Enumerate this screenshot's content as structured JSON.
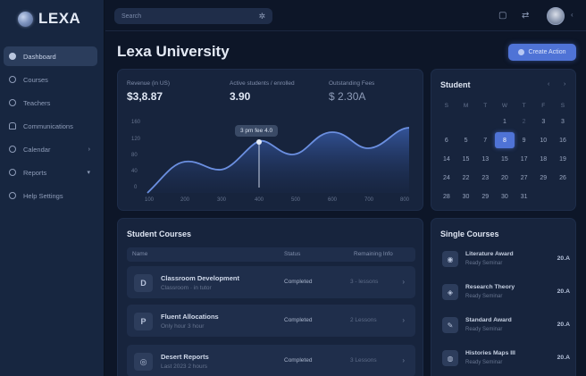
{
  "app": {
    "logo": "LEXA"
  },
  "sidebar": {
    "items": [
      {
        "label": "Dashboard",
        "icon": "dashboard-icon",
        "active": true
      },
      {
        "label": "Courses",
        "icon": "circle-icon"
      },
      {
        "label": "Teachers",
        "icon": "circle-icon"
      },
      {
        "label": "Communications",
        "icon": "user-icon"
      },
      {
        "label": "Calendar",
        "icon": "circle-icon",
        "chevron": "›"
      },
      {
        "label": "Reports",
        "icon": "circle-icon",
        "chevron": "▾"
      },
      {
        "label": "Help Settings",
        "icon": "help-icon"
      }
    ]
  },
  "topbar": {
    "search_placeholder": "Search",
    "search_icon": "✲",
    "icons": [
      "▢",
      "⇄"
    ],
    "caret": "‹"
  },
  "header": {
    "title": "Lexa University",
    "primary_button": "Create Action"
  },
  "stats": [
    {
      "label": "Revenue (in US)",
      "value": "$3,8.87"
    },
    {
      "label": "Active students / enrolled",
      "value": "3.90"
    },
    {
      "label": "Outstanding Fees",
      "value": "$ 2.30A"
    }
  ],
  "chart_data": {
    "type": "area",
    "title": "",
    "x": [
      "Jan",
      "Feb",
      "Mar",
      "Apr",
      "May",
      "Jun",
      "Jul",
      "Aug"
    ],
    "xtick_labels": [
      "100",
      "200",
      "300",
      "400",
      "500",
      "600",
      "700",
      "800"
    ],
    "ytick_labels": [
      "0",
      "40",
      "80",
      "120",
      "160"
    ],
    "values": [
      8,
      72,
      50,
      118,
      82,
      140,
      100,
      160
    ],
    "ylim": [
      0,
      160
    ],
    "tooltip": {
      "index": 3,
      "label": "3 pm fee 4.0"
    },
    "grid": false,
    "color": "#4f73d6"
  },
  "calendar": {
    "title": "Student",
    "nav": [
      "‹",
      "›"
    ],
    "dow": [
      "S",
      "M",
      "T",
      "W",
      "T",
      "F",
      "S"
    ],
    "rows": [
      [
        "",
        "",
        "",
        "1",
        "2",
        "3",
        "3"
      ],
      [
        "6",
        "5",
        "7",
        "8",
        "9",
        "10",
        "16"
      ],
      [
        "14",
        "15",
        "13",
        "15",
        "17",
        "18",
        "19"
      ],
      [
        "24",
        "22",
        "23",
        "20",
        "27",
        "29",
        "26"
      ],
      [
        "28",
        "30",
        "29",
        "30",
        "31",
        "",
        ""
      ]
    ],
    "selected": "8"
  },
  "courses": {
    "title": "Student Courses",
    "headers": [
      "Name",
      "Status",
      "Remaining Info"
    ],
    "rows": [
      {
        "icon": "D",
        "name": "Classroom Development",
        "sub": "Classroom · in tutor",
        "status": "Completed",
        "lessons": "3 - lessons",
        "arrow": "›"
      },
      {
        "icon": "P",
        "name": "Fluent Allocations",
        "sub": "Only hour 3 hour",
        "status": "Completed",
        "lessons": "2 Lessons",
        "arrow": "›"
      },
      {
        "icon": "◎",
        "name": "Desert Reports",
        "sub": "Last 2023 2 hours",
        "status": "Completed",
        "lessons": "3 Lessons",
        "arrow": "›"
      }
    ]
  },
  "single": {
    "title": "Single Courses",
    "items": [
      {
        "name": "Literature Award",
        "sub": "Ready Seminar",
        "value": "20.A"
      },
      {
        "name": "Research Theory",
        "sub": "Ready Seminar",
        "value": "20.A"
      },
      {
        "name": "Standard Award",
        "sub": "Ready Seminar",
        "value": "20.A"
      },
      {
        "name": "Histories Maps III",
        "sub": "Ready Seminar",
        "value": "20.A"
      }
    ]
  }
}
